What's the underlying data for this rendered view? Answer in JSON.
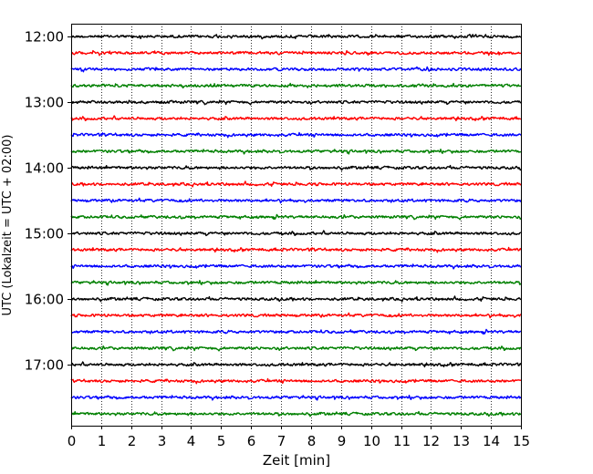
{
  "chart_data": {
    "type": "line",
    "title": "",
    "xlabel": "Zeit  [min]",
    "ylabel": "UTC (Lokalzeit = UTC + 02:00)",
    "xlim": [
      0,
      15
    ],
    "x_ticks": [
      "0",
      "1",
      "2",
      "3",
      "4",
      "5",
      "6",
      "7",
      "8",
      "9",
      "10",
      "11",
      "12",
      "13",
      "14",
      "15"
    ],
    "y_ticks": [
      "12:00",
      "13:00",
      "14:00",
      "15:00",
      "16:00",
      "17:00"
    ],
    "grid": "vertical dotted lines at each minute",
    "trace_interval_min": 15,
    "series": [
      {
        "start": "12:00",
        "color": "#000000"
      },
      {
        "start": "12:15",
        "color": "#ff0000"
      },
      {
        "start": "12:30",
        "color": "#0000ff"
      },
      {
        "start": "12:45",
        "color": "#008000"
      },
      {
        "start": "13:00",
        "color": "#000000"
      },
      {
        "start": "13:15",
        "color": "#ff0000"
      },
      {
        "start": "13:30",
        "color": "#0000ff"
      },
      {
        "start": "13:45",
        "color": "#008000"
      },
      {
        "start": "14:00",
        "color": "#000000"
      },
      {
        "start": "14:15",
        "color": "#ff0000"
      },
      {
        "start": "14:30",
        "color": "#0000ff"
      },
      {
        "start": "14:45",
        "color": "#008000"
      },
      {
        "start": "15:00",
        "color": "#000000"
      },
      {
        "start": "15:15",
        "color": "#ff0000"
      },
      {
        "start": "15:30",
        "color": "#0000ff"
      },
      {
        "start": "15:45",
        "color": "#008000"
      },
      {
        "start": "16:00",
        "color": "#000000"
      },
      {
        "start": "16:15",
        "color": "#ff0000"
      },
      {
        "start": "16:30",
        "color": "#0000ff"
      },
      {
        "start": "16:45",
        "color": "#008000"
      },
      {
        "start": "17:00",
        "color": "#000000"
      },
      {
        "start": "17:15",
        "color": "#ff0000"
      },
      {
        "start": "17:30",
        "color": "#0000ff"
      },
      {
        "start": "17:45",
        "color": "#008000"
      }
    ]
  }
}
